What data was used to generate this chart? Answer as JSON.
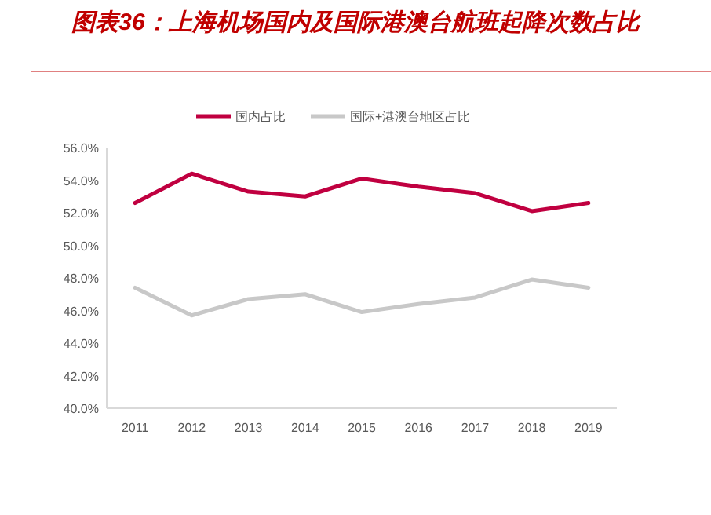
{
  "chart_data": {
    "type": "line",
    "title": "图表36：上海机场国内及国际港澳台航班起降次数占比",
    "categories": [
      "2011",
      "2012",
      "2013",
      "2014",
      "2015",
      "2016",
      "2017",
      "2018",
      "2019"
    ],
    "series": [
      {
        "name": "国内占比",
        "color": "#c00040",
        "values": [
          52.6,
          54.4,
          53.3,
          53.0,
          54.1,
          53.6,
          53.2,
          52.1,
          52.6
        ]
      },
      {
        "name": "国际+港澳台地区占比",
        "color": "#c8c8c8",
        "values": [
          47.4,
          45.7,
          46.7,
          47.0,
          45.9,
          46.4,
          46.8,
          47.9,
          47.4
        ]
      }
    ],
    "ylim": [
      40,
      56
    ],
    "yticks": [
      {
        "value": 40,
        "label": "40.0%"
      },
      {
        "value": 42,
        "label": "42.0%"
      },
      {
        "value": 44,
        "label": "44.0%"
      },
      {
        "value": 46,
        "label": "46.0%"
      },
      {
        "value": 48,
        "label": "48.0%"
      },
      {
        "value": 50,
        "label": "50.0%"
      },
      {
        "value": 52,
        "label": "52.0%"
      },
      {
        "value": 54,
        "label": "54.0%"
      },
      {
        "value": 56,
        "label": "56.0%"
      }
    ],
    "grid": false,
    "legend": "top",
    "marker": "none",
    "line_style": "solid"
  }
}
